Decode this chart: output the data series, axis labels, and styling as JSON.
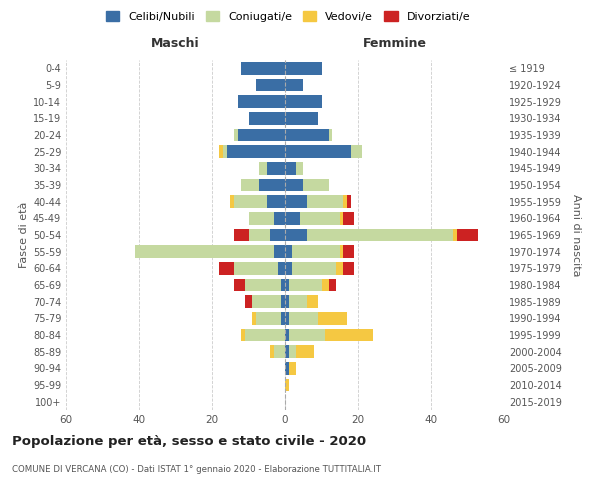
{
  "age_groups": [
    "100+",
    "95-99",
    "90-94",
    "85-89",
    "80-84",
    "75-79",
    "70-74",
    "65-69",
    "60-64",
    "55-59",
    "50-54",
    "45-49",
    "40-44",
    "35-39",
    "30-34",
    "25-29",
    "20-24",
    "15-19",
    "10-14",
    "5-9",
    "0-4"
  ],
  "birth_years": [
    "≤ 1919",
    "1920-1924",
    "1925-1929",
    "1930-1934",
    "1935-1939",
    "1940-1944",
    "1945-1949",
    "1950-1954",
    "1955-1959",
    "1960-1964",
    "1965-1969",
    "1970-1974",
    "1975-1979",
    "1980-1984",
    "1985-1989",
    "1990-1994",
    "1995-1999",
    "2000-2004",
    "2005-2009",
    "2010-2014",
    "2015-2019"
  ],
  "males": {
    "celibi": [
      0,
      0,
      0,
      0,
      0,
      1,
      1,
      1,
      2,
      3,
      4,
      3,
      5,
      7,
      5,
      16,
      13,
      10,
      13,
      8,
      12
    ],
    "coniugati": [
      0,
      0,
      0,
      3,
      11,
      7,
      8,
      10,
      12,
      38,
      6,
      7,
      9,
      5,
      2,
      1,
      1,
      0,
      0,
      0,
      0
    ],
    "vedovi": [
      0,
      0,
      0,
      1,
      1,
      1,
      0,
      0,
      0,
      0,
      0,
      0,
      1,
      0,
      0,
      1,
      0,
      0,
      0,
      0,
      0
    ],
    "divorziati": [
      0,
      0,
      0,
      0,
      0,
      0,
      2,
      3,
      4,
      0,
      4,
      0,
      0,
      0,
      0,
      0,
      0,
      0,
      0,
      0,
      0
    ]
  },
  "females": {
    "nubili": [
      0,
      0,
      1,
      1,
      1,
      1,
      1,
      1,
      2,
      2,
      6,
      4,
      6,
      5,
      3,
      18,
      12,
      9,
      10,
      5,
      10
    ],
    "coniugate": [
      0,
      0,
      0,
      2,
      10,
      8,
      5,
      9,
      12,
      13,
      40,
      11,
      10,
      7,
      2,
      3,
      1,
      0,
      0,
      0,
      0
    ],
    "vedove": [
      0,
      1,
      2,
      5,
      13,
      8,
      3,
      2,
      2,
      1,
      1,
      1,
      1,
      0,
      0,
      0,
      0,
      0,
      0,
      0,
      0
    ],
    "divorziate": [
      0,
      0,
      0,
      0,
      0,
      0,
      0,
      2,
      3,
      3,
      6,
      3,
      1,
      0,
      0,
      0,
      0,
      0,
      0,
      0,
      0
    ]
  },
  "colors": {
    "celibi": "#3a6ea5",
    "coniugati": "#c5d9a0",
    "vedovi": "#f5c842",
    "divorziati": "#cc2222"
  },
  "legend_labels": [
    "Celibi/Nubili",
    "Coniugati/e",
    "Vedovi/e",
    "Divorziati/e"
  ],
  "title": "Popolazione per età, sesso e stato civile - 2020",
  "subtitle": "COMUNE DI VERCANA (CO) - Dati ISTAT 1° gennaio 2020 - Elaborazione TUTTITALIA.IT",
  "xlabel_left": "Maschi",
  "xlabel_right": "Femmine",
  "ylabel_left": "Fasce di età",
  "ylabel_right": "Anni di nascita",
  "xlim": 60,
  "background_color": "#ffffff",
  "grid_color": "#cccccc"
}
